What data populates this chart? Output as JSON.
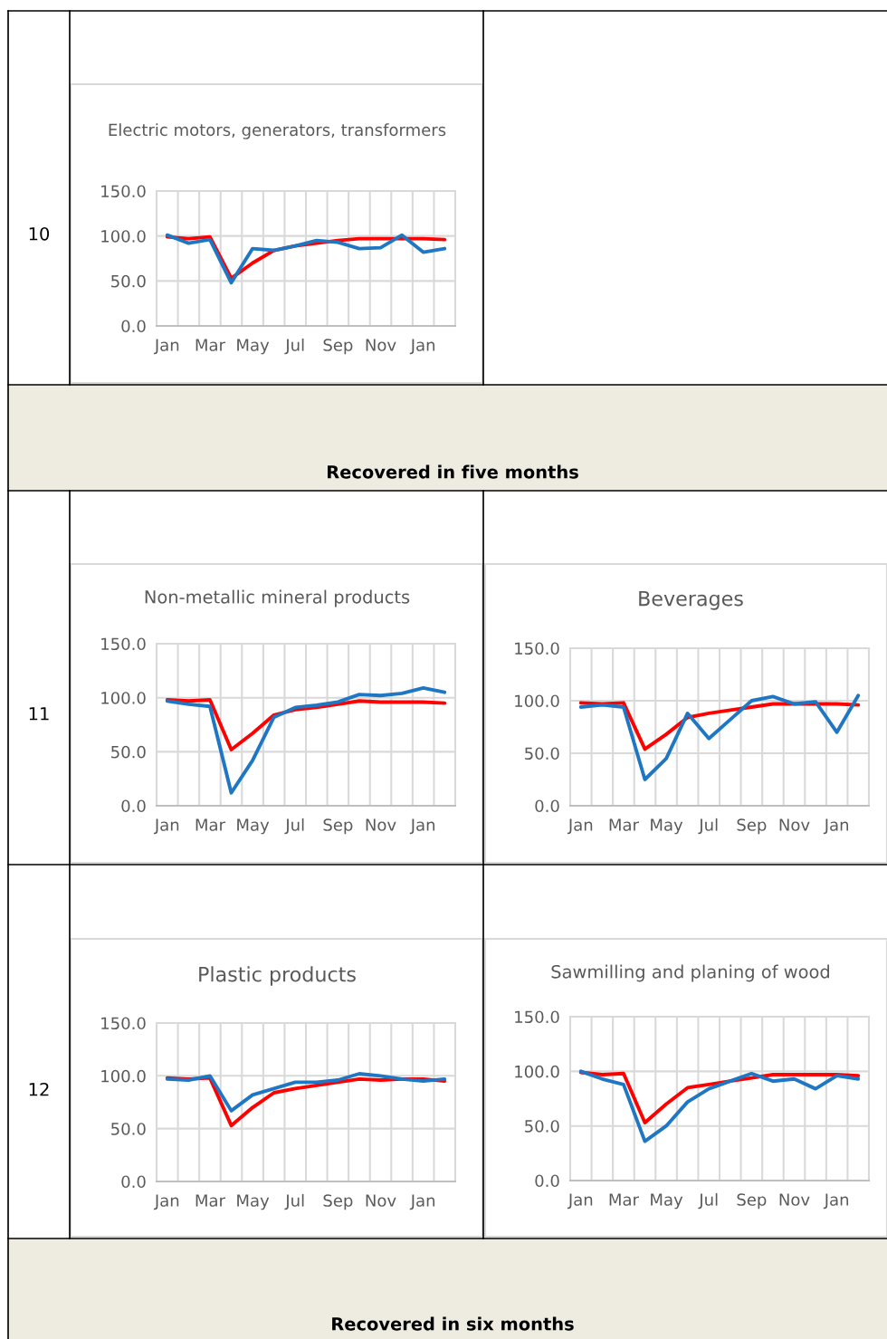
{
  "chart_data": [
    {
      "type": "other",
      "annotations": [
        "10"
      ]
    },
    {
      "type": "line",
      "title": "Electric motors, generators, transformers",
      "categories": [
        "Jan",
        null,
        "Mar",
        null,
        "May",
        null,
        "Jul",
        null,
        "Sep",
        null,
        "Nov",
        null,
        "Jan",
        null
      ],
      "ylim": [
        0,
        150
      ],
      "yticks": [
        {
          "value": 0,
          "label": "0.0"
        },
        {
          "value": 50,
          "label": "50.0"
        },
        {
          "value": 100,
          "label": "100.0"
        },
        {
          "value": 150,
          "label": "150.0"
        }
      ],
      "grid": true,
      "series": [
        {
          "color": "#ff0000",
          "values": [
            99,
            97,
            99,
            53,
            70,
            84,
            89,
            92,
            95,
            97,
            97,
            97,
            97,
            96
          ]
        },
        {
          "color": "#1f77c4",
          "values": [
            101,
            92,
            96,
            48,
            86,
            84,
            89,
            95,
            93,
            86,
            87,
            101,
            82,
            86
          ]
        }
      ]
    },
    {
      "type": "other",
      "annotations": [
        "Recovered in five months"
      ]
    },
    {
      "type": "other",
      "annotations": [
        "11"
      ]
    },
    {
      "type": "line",
      "title": "Non-metallic mineral products",
      "categories": [
        "Jan",
        null,
        "Mar",
        null,
        "May",
        null,
        "Jul",
        null,
        "Sep",
        null,
        "Nov",
        null,
        "Jan",
        null
      ],
      "ylim": [
        0,
        150
      ],
      "yticks": [
        {
          "value": 0,
          "label": "0.0"
        },
        {
          "value": 50,
          "label": "50.0"
        },
        {
          "value": 100,
          "label": "100.0"
        },
        {
          "value": 150,
          "label": "150.0"
        }
      ],
      "grid": true,
      "series": [
        {
          "color": "#ff0000",
          "values": [
            98,
            97,
            98,
            52,
            67,
            84,
            89,
            91,
            94,
            97,
            96,
            96,
            96,
            95
          ]
        },
        {
          "color": "#1f77c4",
          "values": [
            97,
            94,
            92,
            12,
            42,
            82,
            91,
            93,
            96,
            103,
            102,
            104,
            109,
            105
          ]
        }
      ]
    },
    {
      "type": "line",
      "title": "Beverages",
      "categories": [
        "Jan",
        null,
        "Mar",
        null,
        "May",
        null,
        "Jul",
        null,
        "Sep",
        null,
        "Nov",
        null,
        "Jan",
        null
      ],
      "ylim": [
        0,
        150
      ],
      "yticks": [
        {
          "value": 0,
          "label": "0.0"
        },
        {
          "value": 50,
          "label": "50.0"
        },
        {
          "value": 100,
          "label": "100.0"
        },
        {
          "value": 150,
          "label": "150.0"
        }
      ],
      "grid": true,
      "series": [
        {
          "color": "#ff0000",
          "values": [
            98,
            97,
            98,
            54,
            68,
            84,
            88,
            91,
            94,
            97,
            97,
            97,
            97,
            96
          ]
        },
        {
          "color": "#1f77c4",
          "values": [
            94,
            96,
            94,
            25,
            45,
            88,
            64,
            82,
            100,
            104,
            97,
            99,
            70,
            105
          ]
        }
      ]
    },
    {
      "type": "other",
      "annotations": [
        "12"
      ]
    },
    {
      "type": "line",
      "title": "Plastic products",
      "categories": [
        "Jan",
        null,
        "Mar",
        null,
        "May",
        null,
        "Jul",
        null,
        "Sep",
        null,
        "Nov",
        null,
        "Jan",
        null
      ],
      "ylim": [
        0,
        150
      ],
      "yticks": [
        {
          "value": 0,
          "label": "0.0"
        },
        {
          "value": 50,
          "label": "50.0"
        },
        {
          "value": 100,
          "label": "100.0"
        },
        {
          "value": 150,
          "label": "150.0"
        }
      ],
      "grid": true,
      "series": [
        {
          "color": "#ff0000",
          "values": [
            98,
            97,
            98,
            53,
            70,
            84,
            88,
            91,
            94,
            97,
            96,
            97,
            97,
            95
          ]
        },
        {
          "color": "#1f77c4",
          "values": [
            97,
            96,
            100,
            67,
            82,
            88,
            94,
            94,
            96,
            102,
            100,
            97,
            95,
            97
          ]
        }
      ]
    },
    {
      "type": "line",
      "title": "Sawmilling and planing of wood",
      "categories": [
        "Jan",
        null,
        "Mar",
        null,
        "May",
        null,
        "Jul",
        null,
        "Sep",
        null,
        "Nov",
        null,
        "Jan",
        null
      ],
      "ylim": [
        0,
        150
      ],
      "yticks": [
        {
          "value": 0,
          "label": "0.0"
        },
        {
          "value": 50,
          "label": "50.0"
        },
        {
          "value": 100,
          "label": "100.0"
        },
        {
          "value": 150,
          "label": "150.0"
        }
      ],
      "grid": true,
      "series": [
        {
          "color": "#ff0000",
          "values": [
            99,
            97,
            98,
            53,
            70,
            85,
            88,
            91,
            94,
            97,
            97,
            97,
            97,
            96
          ]
        },
        {
          "color": "#1f77c4",
          "values": [
            100,
            93,
            88,
            36,
            50,
            72,
            84,
            91,
            98,
            91,
            93,
            84,
            96,
            93
          ]
        }
      ]
    },
    {
      "type": "other",
      "annotations": [
        "Recovered in six months"
      ]
    }
  ]
}
